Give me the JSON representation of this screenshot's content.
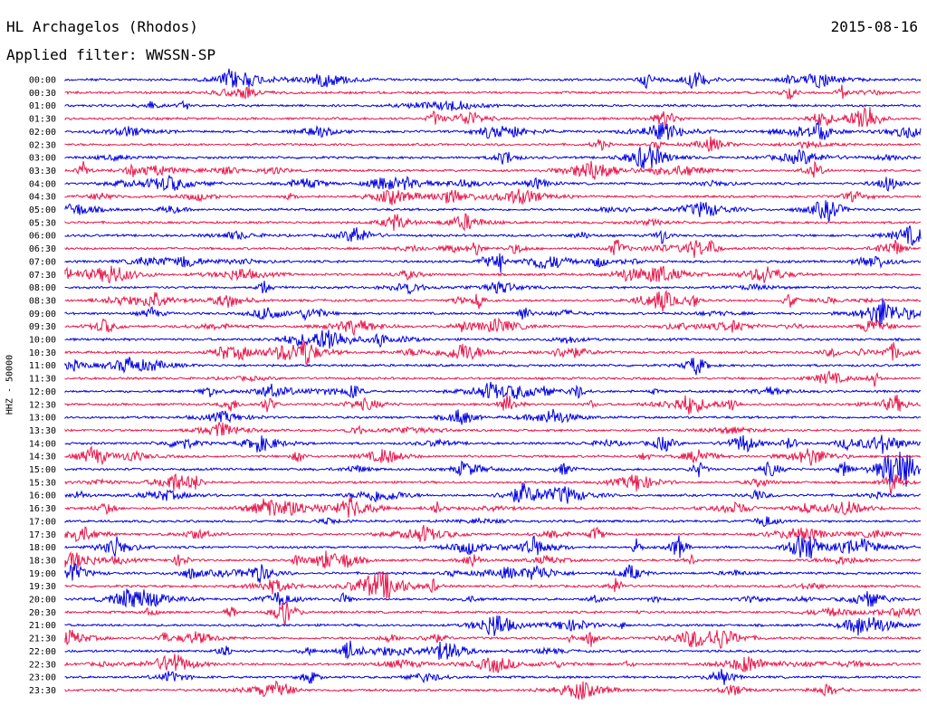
{
  "header": {
    "station": "HL Archagelos (Rhodos)",
    "date": "2015-08-16",
    "filter": "Applied filter: WWSSN-SP"
  },
  "chart_data": {
    "type": "line",
    "ylabel": "HHZ - 50000",
    "colors": [
      "#0000e0",
      "#e8174b"
    ],
    "rows": [
      "00:00",
      "00:30",
      "01:00",
      "01:30",
      "02:00",
      "02:30",
      "03:00",
      "03:30",
      "04:00",
      "04:30",
      "05:00",
      "05:30",
      "06:00",
      "06:30",
      "07:00",
      "07:30",
      "08:00",
      "08:30",
      "09:00",
      "09:30",
      "10:00",
      "10:30",
      "11:00",
      "11:30",
      "12:00",
      "12:30",
      "13:00",
      "13:30",
      "14:00",
      "14:30",
      "15:00",
      "15:30",
      "16:00",
      "16:30",
      "17:00",
      "17:30",
      "18:00",
      "18:30",
      "19:00",
      "19:30",
      "20:00",
      "20:30",
      "21:00",
      "21:30",
      "22:00",
      "22:30",
      "23:00",
      "23:30"
    ]
  }
}
